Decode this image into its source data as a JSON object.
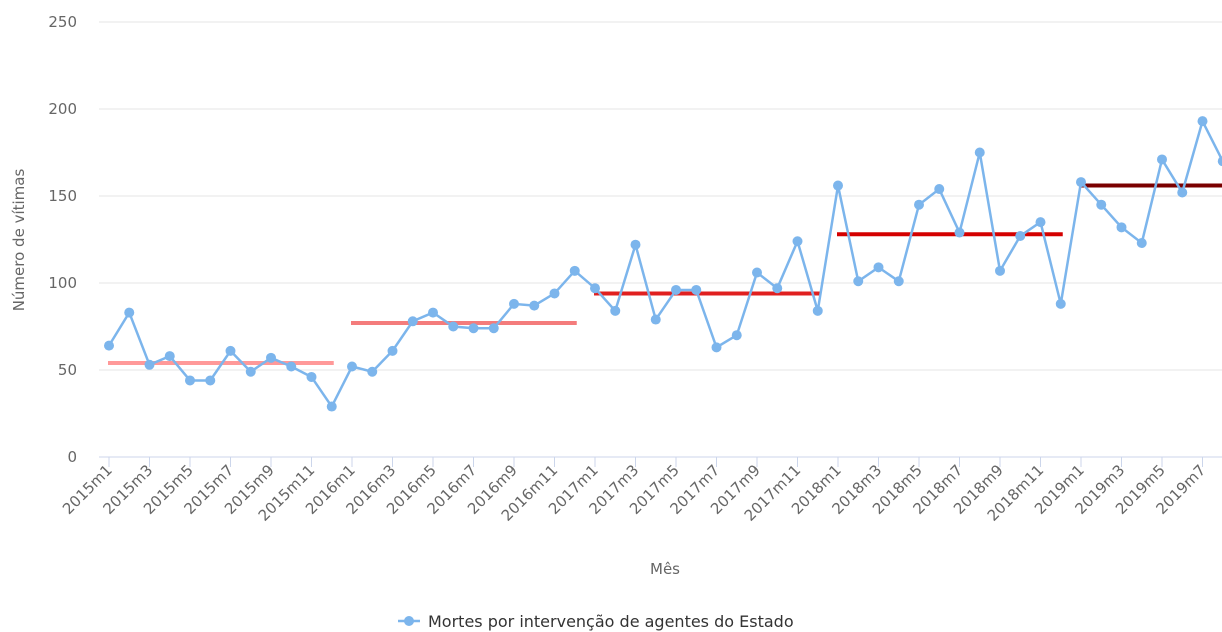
{
  "chart_data": {
    "type": "line",
    "y_axis_label": "Número de vítimas",
    "x_axis_label": "Mês",
    "categories": [
      "2015m1",
      null,
      "2015m3",
      null,
      "2015m5",
      null,
      "2015m7",
      null,
      "2015m9",
      null,
      "2015m11",
      null,
      "2016m1",
      null,
      "2016m3",
      null,
      "2016m5",
      null,
      "2016m7",
      null,
      "2016m9",
      null,
      "2016m11",
      null,
      "2017m1",
      null,
      "2017m3",
      null,
      "2017m5",
      null,
      "2017m7",
      null,
      "2017m9",
      null,
      "2017m11",
      null,
      "2018m1",
      null,
      "2018m3",
      null,
      "2018m5",
      null,
      "2018m7",
      null,
      "2018m9",
      null,
      "2018m11",
      null,
      "2019m1",
      null,
      "2019m3",
      null,
      "2019m5",
      null,
      "2019m7",
      null
    ],
    "series": [
      {
        "name": "Mortes por intervenção de agentes do Estado",
        "color": "#7cb5ec",
        "values": [
          64,
          83,
          53,
          58,
          44,
          44,
          61,
          49,
          57,
          52,
          46,
          29,
          52,
          49,
          61,
          78,
          83,
          75,
          74,
          74,
          88,
          87,
          94,
          107,
          97,
          84,
          122,
          79,
          96,
          96,
          63,
          70,
          106,
          97,
          124,
          84,
          156,
          101,
          109,
          101,
          145,
          154,
          129,
          175,
          107,
          127,
          135,
          88,
          158,
          145,
          132,
          123,
          171,
          152,
          193,
          170
        ]
      }
    ],
    "reference_lines": [
      {
        "value": 54,
        "color": "#ff9999",
        "start": 0,
        "end": 11
      },
      {
        "value": 77,
        "color": "#f47c7c",
        "start": 12,
        "end": 23
      },
      {
        "value": 94,
        "color": "#e02020",
        "start": 24,
        "end": 35
      },
      {
        "value": 128,
        "color": "#d40000",
        "start": 36,
        "end": 47
      },
      {
        "value": 156,
        "color": "#7a0000",
        "start": 48,
        "end": 55
      }
    ],
    "ylim": [
      0,
      250
    ],
    "yticks": [
      0,
      50,
      100,
      150,
      200,
      250
    ],
    "grid": true
  }
}
